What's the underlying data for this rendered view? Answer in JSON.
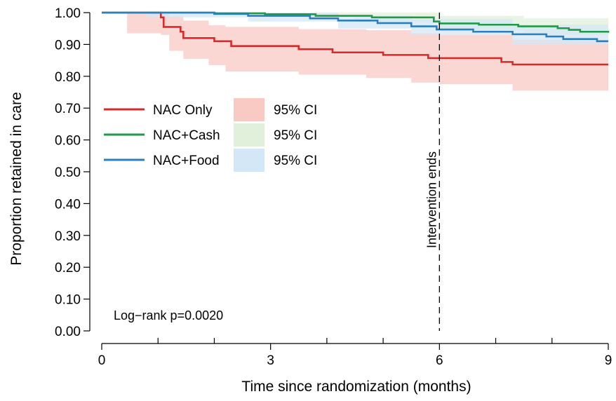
{
  "chart_data": {
    "type": "line",
    "xlabel": "Time since randomization (months)",
    "ylabel": "Proportion retained in care",
    "xlim": [
      0,
      9
    ],
    "ylim": [
      0,
      1
    ],
    "x_ticks": [
      {
        "value": 0,
        "label": "0"
      },
      {
        "value": 3,
        "label": "3"
      },
      {
        "value": 6,
        "label": "6"
      },
      {
        "value": 9,
        "label": "9"
      }
    ],
    "x_minor_ticks": [
      1,
      2,
      4,
      5,
      7,
      8
    ],
    "y_ticks": [
      {
        "value": 0.0,
        "label": "0.00"
      },
      {
        "value": 0.1,
        "label": "0.10"
      },
      {
        "value": 0.2,
        "label": "0.20"
      },
      {
        "value": 0.3,
        "label": "0.30"
      },
      {
        "value": 0.4,
        "label": "0.40"
      },
      {
        "value": 0.5,
        "label": "0.50"
      },
      {
        "value": 0.6,
        "label": "0.60"
      },
      {
        "value": 0.7,
        "label": "0.70"
      },
      {
        "value": 0.8,
        "label": "0.80"
      },
      {
        "value": 0.9,
        "label": "0.90"
      },
      {
        "value": 1.0,
        "label": "1.00"
      }
    ],
    "grid": false,
    "legend_position": "left",
    "legend": [
      {
        "series_label": "NAC Only",
        "ci_label": "95% CI"
      },
      {
        "series_label": "NAC+Cash",
        "ci_label": "95% CI"
      },
      {
        "series_label": "NAC+Food",
        "ci_label": "95% CI"
      }
    ],
    "series": [
      {
        "name": "NAC Only",
        "color": "#d62b2b",
        "ci_color": "#f9c9c4",
        "steps": [
          {
            "x": 0,
            "y": 1.0
          },
          {
            "x": 1.05,
            "y": 0.985
          },
          {
            "x": 1.1,
            "y": 0.955
          },
          {
            "x": 1.4,
            "y": 0.94
          },
          {
            "x": 1.45,
            "y": 0.92
          },
          {
            "x": 2.0,
            "y": 0.91
          },
          {
            "x": 2.3,
            "y": 0.895
          },
          {
            "x": 3.5,
            "y": 0.885
          },
          {
            "x": 4.1,
            "y": 0.875
          },
          {
            "x": 5.0,
            "y": 0.867
          },
          {
            "x": 5.8,
            "y": 0.857
          },
          {
            "x": 7.1,
            "y": 0.845
          },
          {
            "x": 7.3,
            "y": 0.837
          },
          {
            "x": 9.0,
            "y": 0.837
          }
        ],
        "ci": [
          {
            "x": 0,
            "lo": 1.0,
            "hi": 1.0
          },
          {
            "x": 0.45,
            "lo": 0.935,
            "hi": 1.0
          },
          {
            "x": 1.05,
            "lo": 0.93,
            "hi": 1.0
          },
          {
            "x": 1.2,
            "lo": 0.88,
            "hi": 0.99
          },
          {
            "x": 1.45,
            "lo": 0.855,
            "hi": 0.975
          },
          {
            "x": 1.9,
            "lo": 0.835,
            "hi": 0.96
          },
          {
            "x": 2.2,
            "lo": 0.815,
            "hi": 0.955
          },
          {
            "x": 3.5,
            "lo": 0.805,
            "hi": 0.948
          },
          {
            "x": 4.7,
            "lo": 0.795,
            "hi": 0.945
          },
          {
            "x": 5.5,
            "lo": 0.78,
            "hi": 0.935
          },
          {
            "x": 6.0,
            "lo": 0.775,
            "hi": 0.93
          },
          {
            "x": 7.3,
            "lo": 0.755,
            "hi": 0.915
          },
          {
            "x": 9.0,
            "lo": 0.752,
            "hi": 0.91
          }
        ]
      },
      {
        "name": "NAC+Cash",
        "color": "#1f9a48",
        "ci_color": "#e1f0db",
        "steps": [
          {
            "x": 0,
            "y": 1.0
          },
          {
            "x": 2.0,
            "y": 0.998
          },
          {
            "x": 2.9,
            "y": 0.995
          },
          {
            "x": 3.8,
            "y": 0.99
          },
          {
            "x": 4.8,
            "y": 0.985
          },
          {
            "x": 5.9,
            "y": 0.972
          },
          {
            "x": 6.0,
            "y": 0.966
          },
          {
            "x": 6.7,
            "y": 0.962
          },
          {
            "x": 7.4,
            "y": 0.957
          },
          {
            "x": 8.1,
            "y": 0.951
          },
          {
            "x": 8.3,
            "y": 0.946
          },
          {
            "x": 8.5,
            "y": 0.94
          },
          {
            "x": 9.0,
            "y": 0.937
          }
        ],
        "ci": [
          {
            "x": 0,
            "lo": 1.0,
            "hi": 1.0
          },
          {
            "x": 3.0,
            "lo": 0.985,
            "hi": 1.0
          },
          {
            "x": 4.5,
            "lo": 0.97,
            "hi": 1.0
          },
          {
            "x": 6.0,
            "lo": 0.945,
            "hi": 0.99
          },
          {
            "x": 7.5,
            "lo": 0.93,
            "hi": 0.982
          },
          {
            "x": 9.0,
            "lo": 0.905,
            "hi": 0.965
          }
        ]
      },
      {
        "name": "NAC+Food",
        "color": "#2a7fc1",
        "ci_color": "#d4e7f6",
        "steps": [
          {
            "x": 0,
            "y": 1.0
          },
          {
            "x": 2.0,
            "y": 0.996
          },
          {
            "x": 2.6,
            "y": 0.99
          },
          {
            "x": 3.7,
            "y": 0.982
          },
          {
            "x": 4.2,
            "y": 0.975
          },
          {
            "x": 4.9,
            "y": 0.967
          },
          {
            "x": 5.5,
            "y": 0.957
          },
          {
            "x": 5.95,
            "y": 0.947
          },
          {
            "x": 6.6,
            "y": 0.94
          },
          {
            "x": 7.3,
            "y": 0.932
          },
          {
            "x": 7.9,
            "y": 0.925
          },
          {
            "x": 8.2,
            "y": 0.917
          },
          {
            "x": 8.8,
            "y": 0.91
          },
          {
            "x": 9.0,
            "y": 0.91
          }
        ],
        "ci": [
          {
            "x": 0,
            "lo": 1.0,
            "hi": 1.0
          },
          {
            "x": 0.8,
            "lo": 0.985,
            "hi": 1.0
          },
          {
            "x": 2.6,
            "lo": 0.972,
            "hi": 1.0
          },
          {
            "x": 4.2,
            "lo": 0.95,
            "hi": 0.99
          },
          {
            "x": 5.5,
            "lo": 0.93,
            "hi": 0.98
          },
          {
            "x": 7.3,
            "lo": 0.9,
            "hi": 0.962
          },
          {
            "x": 9.0,
            "lo": 0.868,
            "hi": 0.95
          }
        ]
      }
    ],
    "reference_line": {
      "x": 6,
      "label": "Intervention ends",
      "style": "dashed"
    },
    "annotation": "Log−rank p=0.0020"
  }
}
